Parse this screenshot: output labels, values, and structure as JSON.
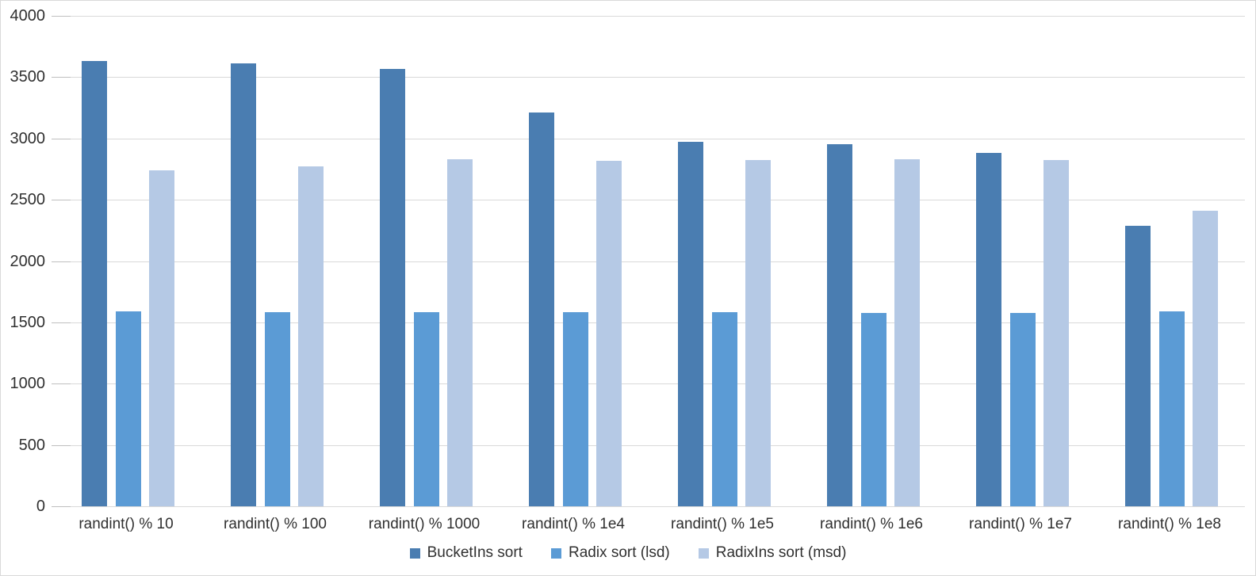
{
  "chart_data": {
    "type": "bar",
    "title": "",
    "xlabel": "",
    "ylabel": "",
    "categories": [
      "randint() % 10",
      "randint() % 100",
      "randint() % 1000",
      "randint() % 1e4",
      "randint() % 1e5",
      "randint() % 1e6",
      "randint() % 1e7",
      "randint() % 1e8"
    ],
    "series": [
      {
        "name": "BucketIns sort",
        "color": "#4a7db1",
        "values": [
          3630,
          3610,
          3565,
          3210,
          2970,
          2955,
          2885,
          2290
        ]
      },
      {
        "name": "Radix sort (lsd)",
        "color": "#5b9bd5",
        "values": [
          1590,
          1585,
          1585,
          1580,
          1580,
          1575,
          1575,
          1590
        ]
      },
      {
        "name": "RadixIns sort (msd)",
        "color": "#b5c9e5",
        "values": [
          2740,
          2775,
          2830,
          2815,
          2825,
          2830,
          2825,
          2410
        ]
      }
    ],
    "ylim": [
      0,
      4000
    ],
    "ytick_step": 500,
    "ytick_labels": [
      "0",
      "500",
      "1000",
      "1500",
      "2000",
      "2500",
      "3000",
      "3500",
      "4000"
    ],
    "grid": true,
    "legend_position": "bottom"
  },
  "palette": {
    "background": "#ffffff",
    "border": "#d9d9d9",
    "gridline": "#d9d9d9",
    "tick": "#bfbfbf",
    "axis_text": "#303030"
  }
}
